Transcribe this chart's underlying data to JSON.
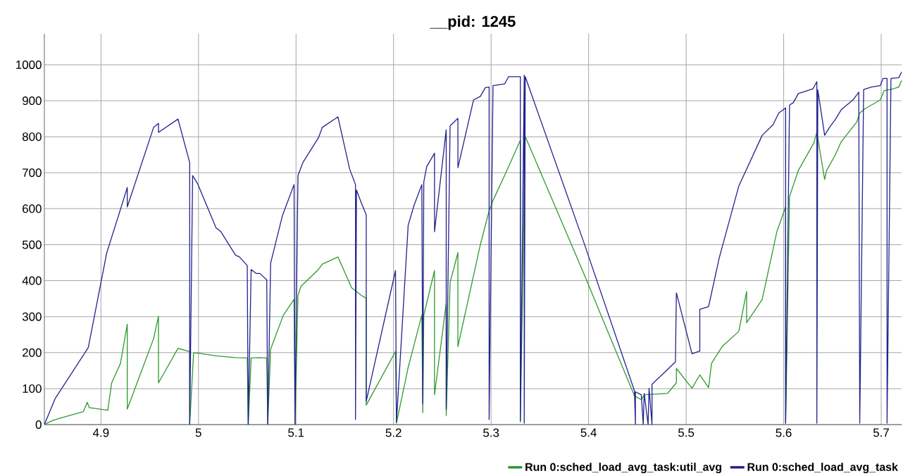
{
  "chart_data": {
    "type": "line",
    "title": "__pid: 1245",
    "xlim": [
      4.842,
      5.721
    ],
    "ylim": [
      0,
      1086
    ],
    "xticks": [
      4.9,
      5,
      5.1,
      5.2,
      5.3,
      5.4,
      5.5,
      5.6,
      5.7
    ],
    "yticks": [
      0,
      100,
      200,
      300,
      400,
      500,
      600,
      700,
      800,
      900,
      1000
    ],
    "grid": true,
    "legend": "bottom right",
    "marker": "none",
    "line_style": "solid",
    "series": [
      {
        "name": "Run 0:sched_load_avg_task:util_avg",
        "color": "#2e9a2e",
        "x": [
          4.842,
          4.85,
          4.858,
          4.882,
          4.886,
          4.888,
          4.907,
          4.911,
          4.914,
          4.92,
          4.927,
          4.927,
          4.954,
          4.959,
          4.959,
          4.979,
          4.991,
          4.991,
          4.995,
          4.999,
          5.018,
          5.038,
          5.05,
          5.051,
          5.054,
          5.062,
          5.07,
          5.071,
          5.074,
          5.087,
          5.098,
          5.099,
          5.102,
          5.105,
          5.123,
          5.127,
          5.143,
          5.157,
          5.167,
          5.172,
          5.172,
          5.202,
          5.203,
          5.215,
          5.229,
          5.23,
          5.231,
          5.242,
          5.242,
          5.254,
          5.254,
          5.258,
          5.266,
          5.266,
          5.289,
          5.298,
          5.302,
          5.315,
          5.33,
          5.33,
          5.335,
          5.395,
          5.447,
          5.454,
          5.457,
          5.481,
          5.49,
          5.49,
          5.506,
          5.514,
          5.523,
          5.526,
          5.537,
          5.554,
          5.562,
          5.562,
          5.578,
          5.593,
          5.602,
          5.602,
          5.606,
          5.615,
          5.631,
          5.634,
          5.642,
          5.644,
          5.653,
          5.659,
          5.675,
          5.678,
          5.683,
          5.699,
          5.703,
          5.71,
          5.718,
          5.721
        ],
        "values": [
          0,
          11,
          18,
          36,
          62,
          47,
          40,
          116,
          134,
          170,
          279,
          43,
          239,
          301,
          116,
          212,
          203,
          0,
          199,
          199,
          191,
          186,
          185,
          0,
          185,
          186,
          185,
          0,
          210,
          304,
          348,
          0,
          359,
          384,
          431,
          446,
          466,
          380,
          359,
          351,
          54,
          203,
          4,
          159,
          304,
          33,
          304,
          428,
          83,
          337,
          25,
          395,
          478,
          217,
          500,
          594,
          623,
          699,
          790,
          7,
          801,
          420,
          80,
          69,
          83,
          87,
          116,
          156,
          101,
          138,
          103,
          170,
          217,
          259,
          370,
          283,
          348,
          536,
          605,
          4,
          634,
          706,
          783,
          812,
          681,
          706,
          750,
          786,
          841,
          866,
          877,
          902,
          928,
          931,
          938,
          957
        ]
      },
      {
        "name": "Run 0:sched_load_avg_task",
        "color": "#22228f",
        "x": [
          4.842,
          4.853,
          4.887,
          4.906,
          4.917,
          4.927,
          4.927,
          4.954,
          4.959,
          4.959,
          4.979,
          4.991,
          4.991,
          4.994,
          4.999,
          5.018,
          5.023,
          5.038,
          5.042,
          5.05,
          5.051,
          5.054,
          5.059,
          5.063,
          5.07,
          5.071,
          5.074,
          5.086,
          5.098,
          5.099,
          5.102,
          5.107,
          5.123,
          5.127,
          5.143,
          5.155,
          5.161,
          5.161,
          5.162,
          5.167,
          5.172,
          5.172,
          5.202,
          5.203,
          5.215,
          5.221,
          5.229,
          5.23,
          5.231,
          5.234,
          5.242,
          5.242,
          5.254,
          5.254,
          5.258,
          5.266,
          5.266,
          5.282,
          5.289,
          5.294,
          5.298,
          5.298,
          5.302,
          5.314,
          5.318,
          5.33,
          5.33,
          5.334,
          5.334,
          5.335,
          5.395,
          5.447,
          5.448,
          5.448,
          5.454,
          5.456,
          5.457,
          5.461,
          5.462,
          5.465,
          5.465,
          5.489,
          5.49,
          5.506,
          5.514,
          5.514,
          5.523,
          5.534,
          5.554,
          5.578,
          5.589,
          5.595,
          5.602,
          5.602,
          5.606,
          5.61,
          5.615,
          5.63,
          5.634,
          5.634,
          5.635,
          5.642,
          5.647,
          5.653,
          5.659,
          5.671,
          5.677,
          5.678,
          5.682,
          5.69,
          5.699,
          5.702,
          5.706,
          5.706,
          5.71,
          5.718,
          5.721
        ],
        "values": [
          0,
          72,
          214,
          478,
          572,
          659,
          605,
          826,
          837,
          812,
          849,
          728,
          0,
          692,
          670,
          547,
          536,
          471,
          466,
          442,
          0,
          431,
          420,
          420,
          402,
          0,
          449,
          580,
          667,
          0,
          692,
          728,
          797,
          826,
          855,
          710,
          667,
          14,
          652,
          616,
          583,
          65,
          428,
          7,
          554,
          609,
          667,
          58,
          674,
          717,
          754,
          536,
          819,
          43,
          830,
          851,
          714,
          902,
          912,
          936,
          938,
          14,
          942,
          947,
          967,
          967,
          11,
          971,
          4,
          967,
          507,
          94,
          0,
          91,
          83,
          0,
          87,
          0,
          101,
          0,
          112,
          174,
          366,
          197,
          204,
          320,
          328,
          464,
          663,
          804,
          833,
          866,
          880,
          4,
          888,
          895,
          920,
          933,
          953,
          4,
          930,
          804,
          826,
          848,
          875,
          902,
          924,
          4,
          931,
          938,
          942,
          962,
          962,
          4,
          962,
          964,
          980
        ]
      }
    ]
  }
}
